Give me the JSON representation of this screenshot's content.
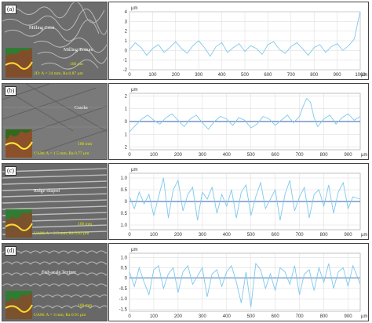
{
  "colors": {
    "profile": "#7ec8ee",
    "baseline": "#2b5fa8",
    "grid": "#d9d9d9",
    "scale_text": "#e8e800"
  },
  "panels": [
    {
      "tag": "(a)",
      "annotations": [
        "Milling Crest",
        "Milling Texture"
      ],
      "scale_label": "100 µm",
      "params_label": "2D: A = 24 mm, Ra 0.87 µm"
    },
    {
      "tag": "(b)",
      "annotations": [
        "Cracks"
      ],
      "scale_label": "100 mm",
      "params_label": "UAM: A = 1.5 mm, Ra 0.77 µm"
    },
    {
      "tag": "(c)",
      "annotations": [
        "Ridge-shaped"
      ],
      "scale_label": "100 mm",
      "params_label": "UAM: A = 2.5 mm, Ra 0.83 µm"
    },
    {
      "tag": "(d)",
      "annotations": [
        "Fish-scale Texture"
      ],
      "scale_label": "100 mm",
      "params_label": "UAM: A = 3 mm, Ra 0.91 µm"
    }
  ],
  "chart_data": [
    {
      "type": "line",
      "yunit": "µm",
      "xunit": "µm",
      "xlim": [
        0,
        1000
      ],
      "ylim": [
        -2,
        4
      ],
      "xticks": [
        0,
        100,
        200,
        300,
        400,
        500,
        600,
        700,
        800,
        900,
        1000
      ],
      "yticks": [
        4,
        3,
        2,
        1,
        0,
        -1,
        -2
      ],
      "ytick_labels": [
        "4",
        "3",
        "2",
        "1",
        "0",
        "-1",
        "-2"
      ],
      "baseline": null,
      "series": [
        {
          "x": [
            0,
            25,
            50,
            75,
            100,
            125,
            150,
            175,
            200,
            225,
            250,
            275,
            300,
            325,
            350,
            375,
            400,
            425,
            450,
            475,
            500,
            525,
            550,
            575,
            600,
            625,
            650,
            675,
            700,
            725,
            750,
            775,
            800,
            825,
            850,
            875,
            900,
            925,
            950,
            975,
            990,
            1000
          ],
          "y": [
            0.1,
            0.8,
            0.3,
            -0.5,
            0.2,
            0.6,
            -0.2,
            0.3,
            0.9,
            0.2,
            -0.3,
            0.5,
            1.0,
            0.3,
            -0.6,
            0.4,
            0.8,
            -0.2,
            0.3,
            0.7,
            -0.1,
            0.5,
            0.2,
            -0.4,
            0.6,
            0.9,
            0.1,
            -0.3,
            0.4,
            0.8,
            0.2,
            -0.5,
            0.3,
            0.6,
            -0.2,
            0.4,
            0.7,
            0.0,
            0.5,
            1.2,
            3.0,
            4.0
          ]
        }
      ]
    },
    {
      "type": "line",
      "yunit": "µm",
      "xunit": "µm",
      "xlim": [
        0,
        950
      ],
      "ylim": [
        -2.2,
        2.2
      ],
      "xticks": [
        0,
        100,
        200,
        300,
        400,
        500,
        600,
        700,
        800,
        900
      ],
      "yticks": [
        2,
        1,
        0,
        -1,
        -2
      ],
      "ytick_labels": [
        "2",
        "1",
        "0",
        "1",
        "2"
      ],
      "baseline": 0,
      "series": [
        {
          "x": [
            0,
            25,
            50,
            75,
            100,
            125,
            150,
            175,
            200,
            225,
            250,
            275,
            300,
            325,
            350,
            375,
            400,
            425,
            450,
            475,
            500,
            525,
            550,
            575,
            600,
            625,
            650,
            675,
            700,
            715,
            730,
            745,
            760,
            775,
            800,
            825,
            850,
            875,
            900,
            925,
            950
          ],
          "y": [
            -0.8,
            -0.3,
            0.2,
            0.5,
            0.1,
            -0.2,
            0.3,
            0.6,
            0.1,
            -0.4,
            0.2,
            0.5,
            -0.1,
            -0.6,
            0.0,
            0.4,
            0.2,
            -0.3,
            0.3,
            0.1,
            -0.5,
            -0.2,
            0.4,
            0.2,
            -0.3,
            0.1,
            0.5,
            -0.1,
            0.4,
            1.2,
            1.8,
            1.5,
            0.3,
            -0.4,
            0.2,
            0.5,
            -0.2,
            0.3,
            0.6,
            0.1,
            0.4
          ]
        }
      ]
    },
    {
      "type": "line",
      "yunit": "µm",
      "xunit": "µm",
      "xlim": [
        0,
        950
      ],
      "ylim": [
        -1.2,
        1.2
      ],
      "xticks": [
        0,
        100,
        200,
        300,
        400,
        500,
        600,
        700,
        800,
        900
      ],
      "yticks": [
        1.0,
        0.5,
        0,
        -0.5,
        -1.0
      ],
      "ytick_labels": [
        "1.0",
        "0.5",
        "0",
        "0.5",
        "1.0"
      ],
      "baseline": 0,
      "series": [
        {
          "x": [
            0,
            20,
            40,
            60,
            80,
            100,
            120,
            140,
            160,
            180,
            200,
            220,
            240,
            260,
            280,
            300,
            320,
            340,
            360,
            380,
            400,
            420,
            440,
            460,
            480,
            500,
            520,
            540,
            560,
            580,
            600,
            620,
            640,
            660,
            680,
            700,
            720,
            740,
            760,
            780,
            800,
            820,
            840,
            860,
            880,
            900,
            920,
            950
          ],
          "y": [
            0.2,
            -0.3,
            0.4,
            -0.1,
            0.3,
            -0.6,
            0.2,
            1.0,
            -0.7,
            0.5,
            0.9,
            -0.4,
            0.3,
            0.6,
            -0.8,
            0.4,
            0.1,
            0.6,
            -0.5,
            0.3,
            -0.2,
            0.5,
            -0.7,
            0.4,
            0.7,
            -0.6,
            0.2,
            0.8,
            -0.3,
            0.1,
            0.5,
            -0.8,
            0.3,
            0.9,
            -0.4,
            0.2,
            0.6,
            -0.7,
            0.3,
            0.5,
            -0.2,
            0.7,
            -0.5,
            0.4,
            0.8,
            -0.3,
            0.2,
            0.1
          ]
        }
      ]
    },
    {
      "type": "line",
      "yunit": "µm",
      "xunit": "µm",
      "xlim": [
        0,
        950
      ],
      "ylim": [
        -1.6,
        1.2
      ],
      "xticks": [
        0,
        100,
        200,
        300,
        400,
        500,
        600,
        700,
        800,
        900
      ],
      "yticks": [
        1.0,
        0.5,
        0,
        -0.5,
        -1.0,
        -1.5
      ],
      "ytick_labels": [
        "1.0",
        "0.5",
        "0",
        "-0.5",
        "-1.0",
        "-1.5"
      ],
      "baseline": 0,
      "series": [
        {
          "x": [
            0,
            20,
            40,
            60,
            80,
            100,
            120,
            140,
            160,
            180,
            200,
            220,
            240,
            260,
            280,
            300,
            320,
            340,
            360,
            380,
            400,
            420,
            440,
            460,
            480,
            500,
            520,
            540,
            560,
            580,
            600,
            620,
            640,
            660,
            680,
            700,
            720,
            740,
            760,
            780,
            800,
            820,
            840,
            860,
            880,
            900,
            920,
            950
          ],
          "y": [
            0.3,
            -0.4,
            0.5,
            -0.2,
            -0.8,
            0.4,
            0.6,
            -0.5,
            0.2,
            0.5,
            -0.7,
            0.3,
            0.6,
            -0.3,
            0.1,
            0.5,
            -0.9,
            0.2,
            0.4,
            -0.4,
            0.3,
            0.6,
            -0.2,
            -1.2,
            0.3,
            -1.4,
            0.7,
            0.4,
            -0.5,
            0.2,
            -0.6,
            0.5,
            0.3,
            -0.3,
            0.6,
            -0.8,
            0.2,
            0.4,
            -0.6,
            0.5,
            -0.2,
            0.7,
            -0.5,
            0.3,
            0.5,
            -0.4,
            0.6,
            -0.3
          ]
        }
      ]
    }
  ]
}
